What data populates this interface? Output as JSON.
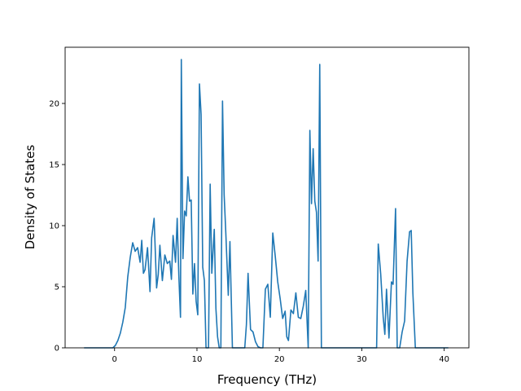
{
  "chart_data": {
    "type": "line",
    "xlabel": "Frequency (THz)",
    "ylabel": "Density of States",
    "xlim": [
      -6.0,
      43.0
    ],
    "ylim": [
      0,
      24.6
    ],
    "x_ticks": [
      0,
      10,
      20,
      30,
      40
    ],
    "y_ticks": [
      0,
      5,
      10,
      15,
      20
    ],
    "grid": false,
    "line_color": "#1f77b4",
    "series": [
      {
        "x": [
          -3.7,
          -0.2,
          0.1,
          0.4,
          0.7,
          1.0,
          1.3,
          1.6,
          1.9,
          2.2,
          2.5,
          2.8,
          3.1,
          3.3,
          3.5,
          3.7,
          4.0,
          4.3,
          4.5,
          4.8,
          5.1,
          5.3,
          5.5,
          5.8,
          6.1,
          6.4,
          6.7,
          6.9,
          7.1,
          7.4,
          7.6,
          7.8,
          8.0,
          8.1,
          8.3,
          8.5,
          8.7,
          8.9,
          9.1,
          9.3,
          9.5,
          9.7,
          9.9,
          10.1,
          10.3,
          10.5,
          10.7,
          10.9,
          11.1,
          11.4,
          11.6,
          11.8,
          12.1,
          12.3,
          12.5,
          12.7,
          12.9,
          13.1,
          13.3,
          13.5,
          13.8,
          14.0,
          14.3,
          14.6,
          14.8,
          15.3,
          15.8,
          16.0,
          16.2,
          16.5,
          16.8,
          17.1,
          17.4,
          17.7,
          18.0,
          18.3,
          18.6,
          18.9,
          19.2,
          19.5,
          19.8,
          20.1,
          20.4,
          20.7,
          20.9,
          21.1,
          21.4,
          21.7,
          22.0,
          22.3,
          22.6,
          22.9,
          23.2,
          23.5,
          23.7,
          23.9,
          24.1,
          24.3,
          24.5,
          24.7,
          24.9,
          25.1,
          25.3,
          25.5,
          31.5,
          31.8,
          32.0,
          32.3,
          32.6,
          32.8,
          33.0,
          33.3,
          33.6,
          33.8,
          34.1,
          34.3,
          34.6,
          34.9,
          35.2,
          35.5,
          35.8,
          36.0,
          36.2,
          36.5,
          36.8,
          40.5
        ],
        "y": [
          0,
          0,
          0.2,
          0.6,
          1.2,
          2.1,
          3.3,
          5.8,
          7.4,
          8.6,
          7.9,
          8.2,
          7.0,
          8.8,
          6.1,
          6.4,
          8.2,
          4.6,
          9.0,
          10.6,
          4.9,
          6.0,
          8.4,
          5.5,
          7.6,
          6.9,
          7.1,
          5.6,
          9.2,
          7.0,
          10.6,
          5.9,
          2.5,
          23.6,
          7.3,
          11.2,
          10.8,
          14.0,
          12.0,
          12.1,
          4.4,
          6.9,
          3.8,
          2.7,
          21.6,
          19.1,
          6.6,
          5.5,
          0,
          0,
          13.4,
          6.1,
          9.7,
          3.2,
          0.9,
          0,
          0,
          20.2,
          12.5,
          9.4,
          4.3,
          8.7,
          0,
          0,
          0,
          0,
          0,
          1.9,
          6.1,
          1.5,
          1.3,
          0.5,
          0.1,
          0,
          0,
          4.8,
          5.2,
          2.5,
          9.4,
          7.5,
          5.4,
          4.0,
          2.4,
          3.0,
          0.9,
          0.6,
          3.1,
          2.8,
          4.5,
          2.5,
          2.4,
          3.4,
          4.7,
          0,
          17.8,
          11.8,
          16.3,
          12.0,
          11.1,
          7.1,
          23.2,
          0,
          0,
          0,
          0,
          0,
          8.5,
          6.0,
          2.5,
          1.1,
          4.8,
          0.8,
          5.4,
          5.2,
          11.4,
          0,
          0,
          1.3,
          2.2,
          7.1,
          9.5,
          9.6,
          4.5,
          0,
          0,
          0
        ]
      }
    ]
  }
}
